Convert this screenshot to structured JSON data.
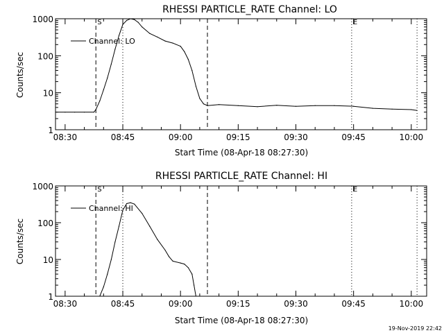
{
  "footer": {
    "timestamp": "19-Nov-2019 22:42"
  },
  "chart_data": [
    {
      "type": "line",
      "title": "RHESSI PARTICLE_RATE Channel: LO",
      "xlabel": "Start Time (08-Apr-18 08:27:30)",
      "ylabel": "Counts/sec",
      "yscale": "log",
      "ylim": [
        1,
        1000
      ],
      "xlim": [
        "08:27:30",
        "10:04:00"
      ],
      "xticks": [
        "08:30",
        "08:45",
        "09:00",
        "09:15",
        "09:30",
        "09:45",
        "10:00"
      ],
      "yticks": [
        "1",
        "10",
        "100",
        "1000"
      ],
      "legend": {
        "placement": "top-left",
        "entries": [
          "Channel: LO"
        ]
      },
      "markers": [
        {
          "label": "S",
          "time": "08:38:00",
          "style": "dashed"
        },
        {
          "label": "",
          "time": "08:45:00",
          "style": "dotted"
        },
        {
          "label": "",
          "time": "09:07:00",
          "style": "dashed"
        },
        {
          "label": "E",
          "time": "09:44:30",
          "style": "dotted"
        },
        {
          "label": "",
          "time": "10:01:30",
          "style": "dotted"
        }
      ],
      "series": [
        {
          "name": "Channel: LO",
          "x": [
            "08:27:30",
            "08:30:00",
            "08:32:30",
            "08:35:00",
            "08:37:30",
            "08:38:00",
            "08:39:00",
            "08:40:00",
            "08:41:00",
            "08:42:00",
            "08:43:00",
            "08:44:00",
            "08:45:00",
            "08:46:00",
            "08:47:00",
            "08:48:00",
            "08:49:00",
            "08:50:00",
            "08:52:00",
            "08:54:00",
            "08:56:00",
            "08:58:00",
            "09:00:00",
            "09:01:00",
            "09:02:00",
            "09:03:00",
            "09:04:00",
            "09:05:00",
            "09:06:00",
            "09:07:00",
            "09:10:00",
            "09:15:00",
            "09:20:00",
            "09:25:00",
            "09:30:00",
            "09:35:00",
            "09:40:00",
            "09:45:00",
            "09:50:00",
            "09:55:00",
            "10:00:00",
            "10:01:30"
          ],
          "y": [
            3,
            3,
            3,
            3,
            3,
            3.5,
            6,
            12,
            25,
            60,
            150,
            350,
            700,
            900,
            1000,
            950,
            800,
            600,
            400,
            320,
            250,
            220,
            180,
            130,
            80,
            40,
            15,
            7,
            5,
            4.5,
            4.8,
            4.5,
            4.2,
            4.6,
            4.3,
            4.5,
            4.5,
            4.3,
            3.8,
            3.6,
            3.5,
            3.3
          ]
        }
      ]
    },
    {
      "type": "line",
      "title": "RHESSI PARTICLE_RATE Channel: HI",
      "xlabel": "Start Time (08-Apr-18 08:27:30)",
      "ylabel": "Counts/sec",
      "yscale": "log",
      "ylim": [
        1,
        1000
      ],
      "xlim": [
        "08:27:30",
        "10:04:00"
      ],
      "xticks": [
        "08:30",
        "08:45",
        "09:00",
        "09:15",
        "09:30",
        "09:45",
        "10:00"
      ],
      "yticks": [
        "1",
        "10",
        "100",
        "1000"
      ],
      "legend": {
        "placement": "top-left",
        "entries": [
          "Channel: HI"
        ]
      },
      "markers": [
        {
          "label": "S",
          "time": "08:38:00",
          "style": "dashed"
        },
        {
          "label": "",
          "time": "08:45:00",
          "style": "dotted"
        },
        {
          "label": "",
          "time": "09:07:00",
          "style": "dashed"
        },
        {
          "label": "E",
          "time": "09:44:30",
          "style": "dotted"
        },
        {
          "label": "",
          "time": "10:01:30",
          "style": "dotted"
        }
      ],
      "series": [
        {
          "name": "Channel: HI",
          "x": [
            "08:39:00",
            "08:40:00",
            "08:41:00",
            "08:42:00",
            "08:43:00",
            "08:44:00",
            "08:45:00",
            "08:46:00",
            "08:47:00",
            "08:48:00",
            "08:50:00",
            "08:52:00",
            "08:54:00",
            "08:56:00",
            "08:57:00",
            "08:58:00",
            "09:00:00",
            "09:01:00",
            "09:02:00",
            "09:03:00",
            "09:03:30",
            "09:04:00"
          ],
          "y": [
            1,
            1.8,
            4,
            10,
            30,
            80,
            220,
            330,
            350,
            320,
            180,
            80,
            35,
            18,
            12,
            9,
            8,
            7.5,
            6,
            4,
            2,
            1
          ]
        }
      ]
    }
  ]
}
